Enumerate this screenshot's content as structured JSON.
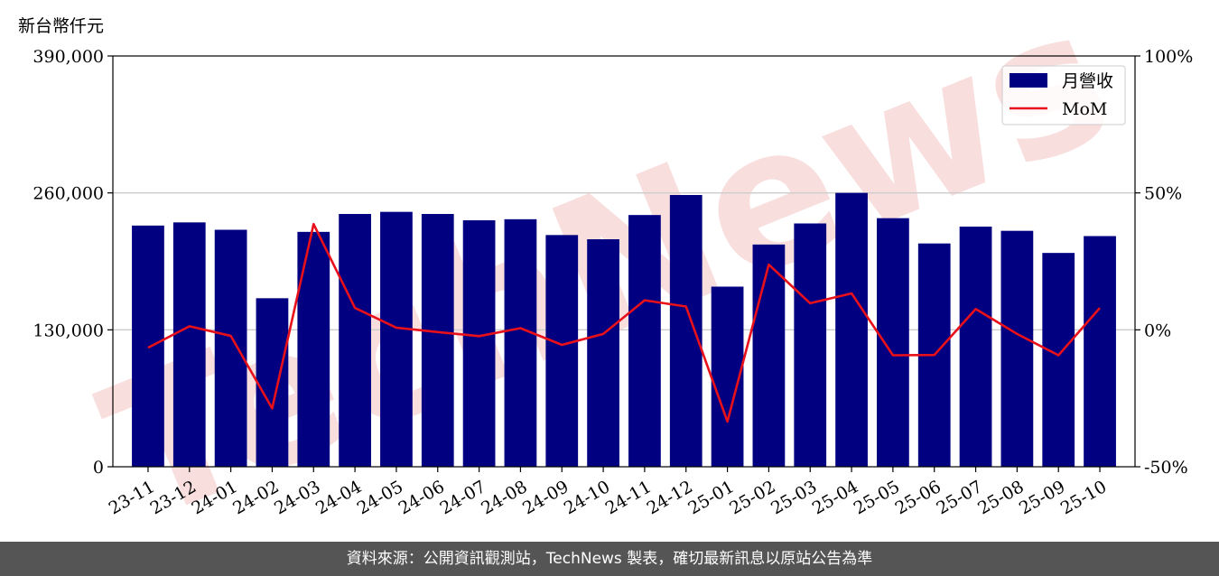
{
  "unit_label": "新台幣仟元",
  "footer": "資料來源：公開資訊觀測站，TechNews 製表，確切最新訊息以原站公告為準",
  "watermark": "TechNews",
  "colors": {
    "bar": "#000080",
    "line": "#e8101a",
    "grid": "#cccccc",
    "watermark": "#f7d6d6"
  },
  "chart_data": {
    "type": "bar",
    "categories": [
      "23-11",
      "23-12",
      "24-01",
      "24-02",
      "24-03",
      "24-04",
      "24-05",
      "24-06",
      "24-07",
      "24-08",
      "24-09",
      "24-10",
      "24-11",
      "24-12",
      "25-01",
      "25-02",
      "25-03",
      "25-04",
      "25-05",
      "25-06",
      "25-07",
      "25-08",
      "25-09",
      "25-10"
    ],
    "series": [
      {
        "name": "月營收",
        "type": "bar",
        "axis": "left",
        "values": [
          229000,
          232000,
          225000,
          160000,
          223000,
          240000,
          242000,
          240000,
          234000,
          235000,
          220000,
          216000,
          239000,
          258000,
          171000,
          211000,
          231000,
          260000,
          236000,
          212000,
          228000,
          224000,
          203000,
          219000
        ]
      },
      {
        "name": "MoM",
        "type": "line",
        "axis": "right",
        "values": [
          -6.5,
          1.3,
          -2.2,
          -28.7,
          38.6,
          8.0,
          0.8,
          -0.8,
          -2.3,
          0.6,
          -5.5,
          -1.5,
          10.8,
          8.5,
          -33.5,
          23.8,
          9.7,
          13.3,
          -9.3,
          -9.2,
          7.6,
          -1.5,
          -9.3,
          8.0
        ]
      }
    ],
    "yaxis_left": {
      "min": 0,
      "max": 390000,
      "ticks": [
        0,
        130000,
        260000,
        390000
      ],
      "tick_labels": [
        "0",
        "130,000",
        "260,000",
        "390,000"
      ]
    },
    "yaxis_right": {
      "min": -50,
      "max": 100,
      "ticks": [
        -50,
        0,
        50,
        100
      ],
      "tick_labels": [
        "-50%",
        "0%",
        "50%",
        "100%"
      ]
    },
    "grid": "horizontal",
    "legend": {
      "position": "top-right",
      "entries": [
        "月營收",
        "MoM"
      ]
    }
  }
}
